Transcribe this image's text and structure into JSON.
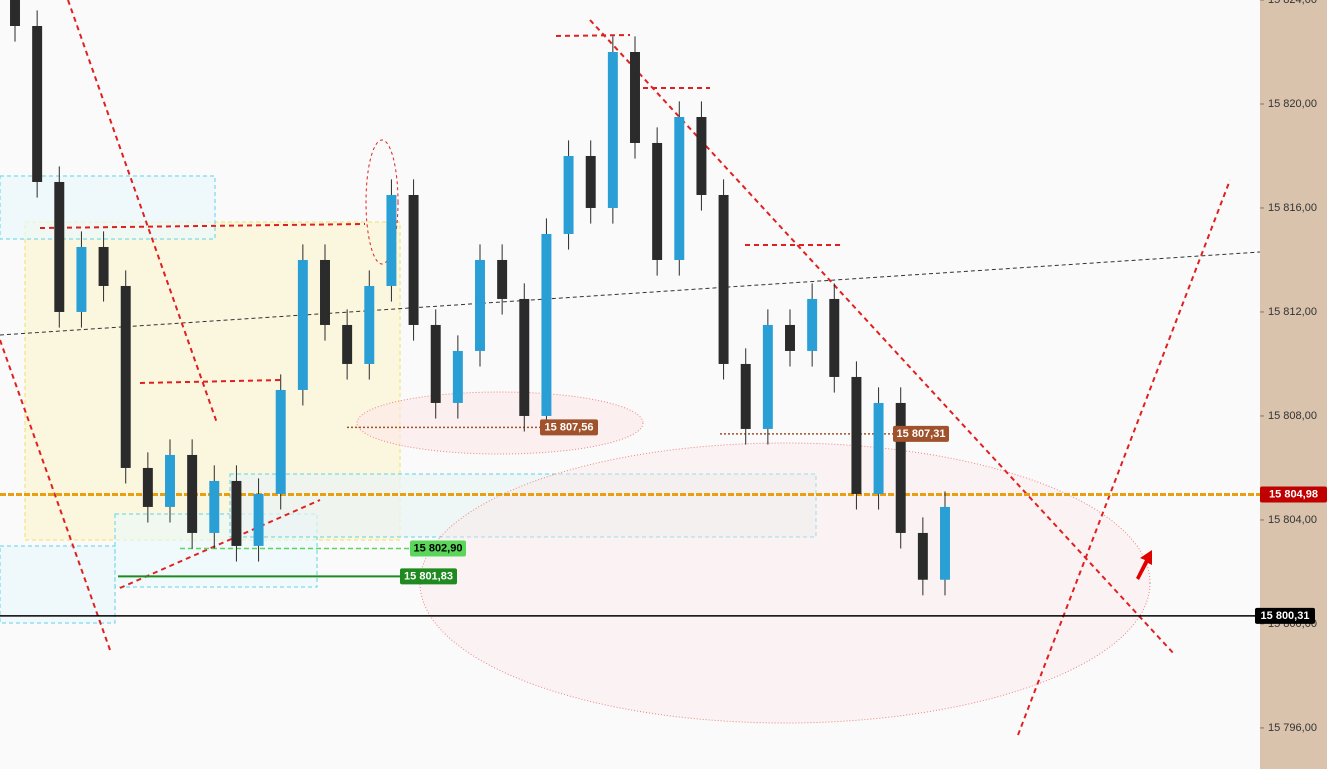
{
  "chart_data": {
    "type": "candlestick",
    "categories": [
      null,
      null,
      null,
      null,
      null,
      null,
      null,
      null,
      null,
      null,
      null,
      null,
      null,
      null,
      null,
      null,
      null,
      null,
      null,
      null,
      null,
      null,
      null,
      null,
      null,
      null,
      null,
      null,
      null,
      null,
      null,
      null,
      null,
      null,
      null,
      null,
      null,
      null,
      null,
      null,
      null,
      null,
      null
    ],
    "open": [
      15824,
      15823,
      15817,
      15812,
      15814.5,
      15813,
      15806,
      15804.5,
      15806.5,
      15803.5,
      15805.5,
      15803,
      15805,
      15809,
      15814,
      15811.5,
      15810,
      15813,
      15816.5,
      15811.5,
      15808.5,
      15810.5,
      15814,
      15812.5,
      15808,
      15815,
      15818,
      15816,
      15822,
      15818.5,
      15814,
      15819.5,
      15816.5,
      15810,
      15807.5,
      15811.5,
      15810.5,
      15812.5,
      15809.5,
      15805,
      15808.5,
      15803.5,
      15801.7
    ],
    "high": [
      15824.6,
      15823.6,
      15817.6,
      15815.1,
      15815.1,
      15813.6,
      15806.6,
      15807.1,
      15807.1,
      15806.1,
      15806.1,
      15805.6,
      15809.6,
      15814.6,
      15814.6,
      15812.1,
      15813.6,
      15817.1,
      15817.1,
      15812.1,
      15811.1,
      15814.6,
      15814.6,
      15813.1,
      15815.6,
      15818.6,
      15818.6,
      15822.6,
      15822.6,
      15819.1,
      15820.1,
      15820.1,
      15817.1,
      15810.6,
      15812.1,
      15812.1,
      15813.1,
      15813.1,
      15810.1,
      15809.1,
      15809.1,
      15804.1,
      15805.1
    ],
    "low": [
      15822.4,
      15816.4,
      15811.4,
      15811.4,
      15812.4,
      15805.4,
      15803.9,
      15803.9,
      15802.9,
      15802.9,
      15802.4,
      15802.4,
      15804.4,
      15808.4,
      15810.9,
      15809.4,
      15809.4,
      15812.4,
      15810.9,
      15807.9,
      15807.9,
      15809.9,
      15811.9,
      15807.4,
      15807.4,
      15814.4,
      15815.4,
      15815.4,
      15817.9,
      15813.4,
      15813.4,
      15815.9,
      15809.4,
      15806.9,
      15806.9,
      15809.9,
      15809.9,
      15808.9,
      15804.4,
      15804.4,
      15802.9,
      15801.1,
      15801.1
    ],
    "close": [
      15823,
      15817,
      15812,
      15814.5,
      15813,
      15806,
      15804.5,
      15806.5,
      15803.5,
      15805.5,
      15803,
      15805,
      15809,
      15814,
      15811.5,
      15810,
      15813,
      15816.5,
      15811.5,
      15808.5,
      15810.5,
      15814,
      15812.5,
      15808,
      15815,
      15818,
      15816,
      15822,
      15818.5,
      15814,
      15819.5,
      15816.5,
      15810,
      15807.5,
      15811.5,
      15810.5,
      15812.5,
      15809.5,
      15805,
      15808.5,
      15803.5,
      15801.7,
      15804.5
    ],
    "up_color": "#2a9fd6",
    "down_color": "#2b2b2b",
    "ylim": [
      15794.42,
      15824
    ],
    "yticks": [
      {
        "value": 15796,
        "label": "15 796,00"
      },
      {
        "value": 15800,
        "label": "15 800,00"
      },
      {
        "value": 15804,
        "label": "15 804,00"
      },
      {
        "value": 15808,
        "label": "15 808,00"
      },
      {
        "value": 15812,
        "label": "15 812,00"
      },
      {
        "value": 15816,
        "label": "15 816,00"
      },
      {
        "value": 15820,
        "label": "15 820,00"
      },
      {
        "value": 15824,
        "label": "15 824,00"
      }
    ],
    "levels": [
      {
        "value": 15807.56,
        "label": "15 807,56",
        "color": "#a0522d"
      },
      {
        "value": 15807.31,
        "label": "15 807,31",
        "color": "#a0522d"
      },
      {
        "value": 15804.98,
        "label": "15 804,98",
        "color": "#e8a010"
      },
      {
        "value": 15802.9,
        "label": "15 802,90",
        "color": "#5ad65a"
      },
      {
        "value": 15801.83,
        "label": "15 801,83",
        "color": "#1f8a1f"
      },
      {
        "value": 15800.31,
        "label": "15 800,31",
        "color": "#000000"
      }
    ]
  }
}
